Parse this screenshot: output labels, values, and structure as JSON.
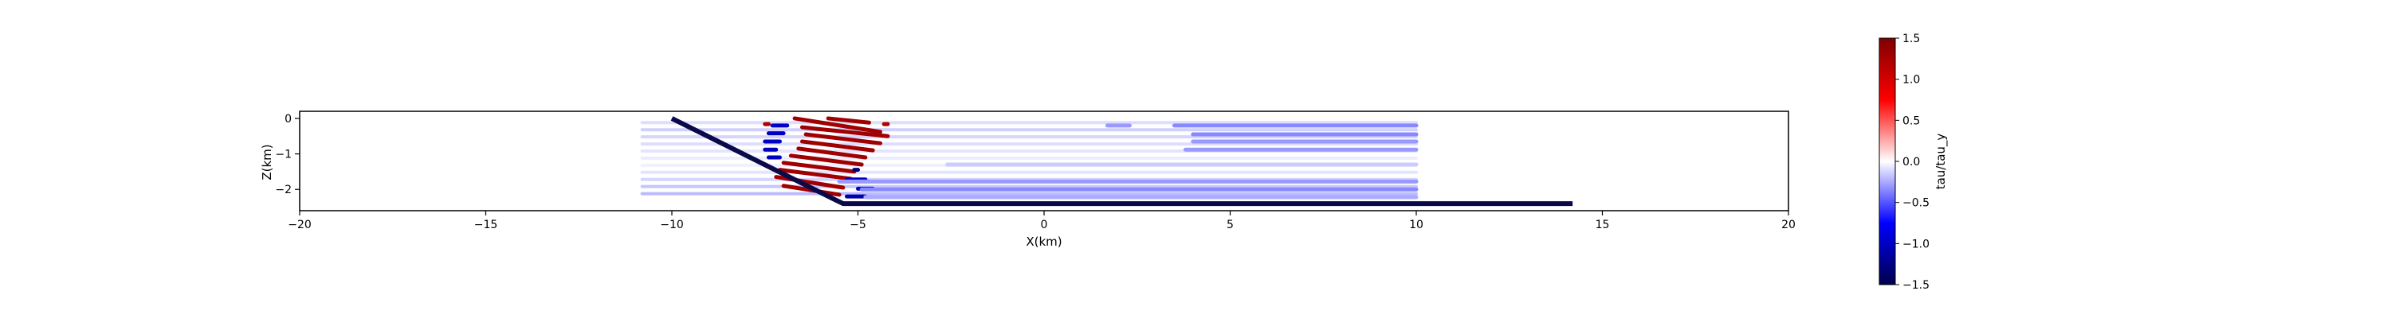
{
  "chart_data": {
    "type": "scatter",
    "title": "",
    "xlabel": "X(km)",
    "ylabel": "Z(km)",
    "xlim": [
      -20,
      20
    ],
    "ylim": [
      -2.6,
      0.2
    ],
    "xticks": [
      -20,
      -15,
      -10,
      -5,
      0,
      5,
      10,
      15,
      20
    ],
    "xtick_labels": [
      "−20",
      "−15",
      "−10",
      "−5",
      "0",
      "5",
      "10",
      "15",
      "20"
    ],
    "yticks": [
      0,
      -1,
      -2
    ],
    "ytick_labels": [
      "0",
      "−1",
      "−2"
    ],
    "grid": false,
    "fault": {
      "color": "#0a0a4a",
      "x": [
        -10,
        -5.6,
        -5.4,
        14.2
      ],
      "y": [
        0,
        -2.3,
        -2.4,
        -2.4
      ]
    },
    "colorbar": {
      "label": "tau/tau_y",
      "range": [
        -1.5,
        1.5
      ],
      "ticks": [
        1.5,
        1.0,
        0.5,
        0.0,
        -0.5,
        -1.0,
        -1.5
      ],
      "tick_labels": [
        "1.5",
        "1.0",
        "0.5",
        "0.0",
        "−0.5",
        "−1.0",
        "−1.5"
      ],
      "colormap": "seismic",
      "colors": [
        "#00004c",
        "#0000ff",
        "#ffffff",
        "#ff0000",
        "#7f0000"
      ]
    },
    "stress_bands": [
      {
        "y": -0.12,
        "x": [
          -10.8,
          10.0
        ],
        "v": -0.18
      },
      {
        "y": -0.32,
        "x": [
          -10.8,
          10.0
        ],
        "v": -0.25
      },
      {
        "y": -0.52,
        "x": [
          -10.8,
          10.0
        ],
        "v": -0.22
      },
      {
        "y": -0.72,
        "x": [
          -10.8,
          10.0
        ],
        "v": -0.18
      },
      {
        "y": -0.92,
        "x": [
          -10.8,
          10.0
        ],
        "v": -0.14
      },
      {
        "y": -1.12,
        "x": [
          -10.8,
          10.0
        ],
        "v": -0.1
      },
      {
        "y": -1.32,
        "x": [
          -10.8,
          10.0
        ],
        "v": -0.08
      },
      {
        "y": -1.52,
        "x": [
          -10.8,
          10.0
        ],
        "v": -0.14
      },
      {
        "y": -1.72,
        "x": [
          -10.8,
          10.0
        ],
        "v": -0.22
      },
      {
        "y": -1.92,
        "x": [
          -10.8,
          10.0
        ],
        "v": -0.3
      },
      {
        "y": -2.12,
        "x": [
          -10.8,
          10.0
        ],
        "v": -0.36
      }
    ],
    "segments": [
      {
        "x": [
          -7.5,
          -7.4
        ],
        "y": [
          -0.16,
          -0.16
        ],
        "v": 1.2
      },
      {
        "x": [
          -4.3,
          -4.2
        ],
        "y": [
          -0.16,
          -0.16
        ],
        "v": 1.2
      },
      {
        "x": [
          -5.8,
          -4.7
        ],
        "y": [
          0,
          -0.12
        ],
        "v": 1.3
      },
      {
        "x": [
          -6.7,
          -4.4
        ],
        "y": [
          0,
          -0.38
        ],
        "v": 1.3
      },
      {
        "x": [
          -6.5,
          -4.2
        ],
        "y": [
          -0.25,
          -0.5
        ],
        "v": 1.3
      },
      {
        "x": [
          -6.4,
          -4.4
        ],
        "y": [
          -0.45,
          -0.7
        ],
        "v": 1.3
      },
      {
        "x": [
          -6.5,
          -4.6
        ],
        "y": [
          -0.65,
          -0.9
        ],
        "v": 1.3
      },
      {
        "x": [
          -6.6,
          -4.8
        ],
        "y": [
          -0.85,
          -1.1
        ],
        "v": 1.3
      },
      {
        "x": [
          -6.8,
          -4.9
        ],
        "y": [
          -1.05,
          -1.3
        ],
        "v": 1.3
      },
      {
        "x": [
          -7.0,
          -5.1
        ],
        "y": [
          -1.25,
          -1.5
        ],
        "v": 1.3
      },
      {
        "x": [
          -7.1,
          -5.2
        ],
        "y": [
          -1.45,
          -1.7
        ],
        "v": 1.3
      },
      {
        "x": [
          -7.2,
          -5.4
        ],
        "y": [
          -1.65,
          -1.95
        ],
        "v": 1.3
      },
      {
        "x": [
          -7.0,
          -5.5
        ],
        "y": [
          -1.9,
          -2.15
        ],
        "v": 1.3
      },
      {
        "x": [
          -7.3,
          -6.9
        ],
        "y": [
          -0.2,
          -0.2
        ],
        "v": -1.0
      },
      {
        "x": [
          -7.4,
          -7.0
        ],
        "y": [
          -0.42,
          -0.42
        ],
        "v": -1.0
      },
      {
        "x": [
          -7.5,
          -7.1
        ],
        "y": [
          -0.65,
          -0.65
        ],
        "v": -1.0
      },
      {
        "x": [
          -7.5,
          -7.2
        ],
        "y": [
          -0.88,
          -0.88
        ],
        "v": -1.0
      },
      {
        "x": [
          -7.4,
          -7.1
        ],
        "y": [
          -1.1,
          -1.1
        ],
        "v": -1.0
      },
      {
        "x": [
          -5.1,
          -5.0
        ],
        "y": [
          -1.45,
          -1.45
        ],
        "v": -1.3
      },
      {
        "x": [
          -5.3,
          -4.8
        ],
        "y": [
          -1.72,
          -1.72
        ],
        "v": -1.0
      },
      {
        "x": [
          -5.5,
          10.0
        ],
        "y": [
          -1.78,
          -1.78
        ],
        "v": -0.3
      },
      {
        "x": [
          -5.0,
          -4.6
        ],
        "y": [
          -1.98,
          -1.98
        ],
        "v": -0.9
      },
      {
        "x": [
          -4.9,
          10.0
        ],
        "y": [
          -2.0,
          -2.0
        ],
        "v": -0.35
      },
      {
        "x": [
          -5.3,
          -4.8
        ],
        "y": [
          -2.2,
          -2.2
        ],
        "v": -1.1
      },
      {
        "x": [
          -4.8,
          10.0
        ],
        "y": [
          -2.22,
          -2.22
        ],
        "v": -0.25
      },
      {
        "x": [
          1.7,
          2.3
        ],
        "y": [
          -0.2,
          -0.2
        ],
        "v": -0.3
      },
      {
        "x": [
          3.5,
          10.0
        ],
        "y": [
          -0.2,
          -0.2
        ],
        "v": -0.35
      },
      {
        "x": [
          4.0,
          10.0
        ],
        "y": [
          -0.45,
          -0.45
        ],
        "v": -0.35
      },
      {
        "x": [
          4.0,
          10.0
        ],
        "y": [
          -0.65,
          -0.65
        ],
        "v": -0.3
      },
      {
        "x": [
          3.8,
          10.0
        ],
        "y": [
          -0.88,
          -0.88
        ],
        "v": -0.3
      },
      {
        "x": [
          -2.6,
          10.0
        ],
        "y": [
          -1.3,
          -1.3
        ],
        "v": -0.15
      }
    ]
  }
}
